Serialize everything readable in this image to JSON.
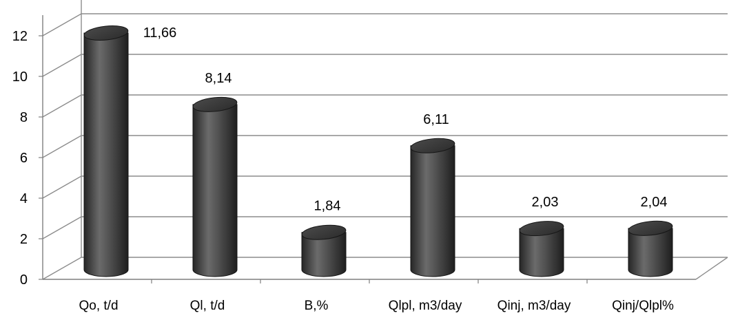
{
  "chart_data": {
    "type": "bar",
    "style": "3d-cylinder",
    "categories": [
      "Qo, t/d",
      "Ql, t/d",
      "B,%",
      "Qlpl, m3/day",
      "Qinj, m3/day",
      "Qinj/Qlpl%"
    ],
    "values": [
      11.66,
      8.14,
      1.84,
      6.11,
      2.03,
      2.04
    ],
    "data_labels": [
      "11,66",
      "8,14",
      "1,84",
      "6,11",
      "2,03",
      "2,04"
    ],
    "y_ticks": [
      "0",
      "2",
      "4",
      "6",
      "8",
      "10",
      "12"
    ],
    "ylim": [
      0,
      12
    ],
    "grid": true,
    "legend": "none",
    "title": "",
    "xlabel": "",
    "ylabel": "",
    "colors": {
      "bar_dark": "#1a1a1a",
      "bar_mid": "#5a5a5a",
      "bar_light": "#8a8a8a",
      "grid": "#8c8c8c",
      "axis": "#7f7f7f"
    }
  }
}
